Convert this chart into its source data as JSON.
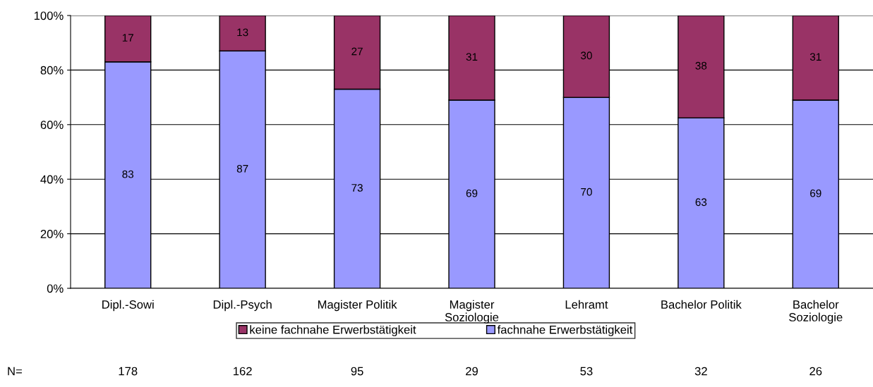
{
  "chart_data": {
    "type": "bar",
    "stacked": true,
    "categories": [
      "Dipl.-Sowi",
      "Dipl.-Psych",
      "Magister Politik",
      "Magister\nSoziologie",
      "Lehramt",
      "Bachelor Politik",
      "Bachelor\nSoziologie"
    ],
    "series": [
      {
        "name": "fachnahe Erwerbstätigkeit",
        "color": "#9999ff",
        "values": [
          83,
          87,
          73,
          69,
          70,
          62.5,
          69
        ],
        "value_labels": [
          "83",
          "87",
          "73",
          "69",
          "70",
          "63",
          "69"
        ]
      },
      {
        "name": "keine fachnahe Erwerbstätigkeit",
        "color": "#993366",
        "values": [
          17,
          13,
          27,
          31,
          30,
          37.5,
          31
        ],
        "value_labels": [
          "17",
          "13",
          "27",
          "31",
          "30",
          "38",
          "31"
        ]
      }
    ],
    "ylim": [
      0,
      100
    ],
    "yticks": [
      {
        "value": 0,
        "label": "0%"
      },
      {
        "value": 20,
        "label": "20%"
      },
      {
        "value": 40,
        "label": "40%"
      },
      {
        "value": 60,
        "label": "60%"
      },
      {
        "value": 80,
        "label": "80%"
      },
      {
        "value": 100,
        "label": "100%"
      }
    ],
    "grid": "y",
    "legend": "bottom",
    "annotations": [
      "N=",
      "178",
      "162",
      "95",
      "29",
      "53",
      "32",
      "26"
    ]
  }
}
